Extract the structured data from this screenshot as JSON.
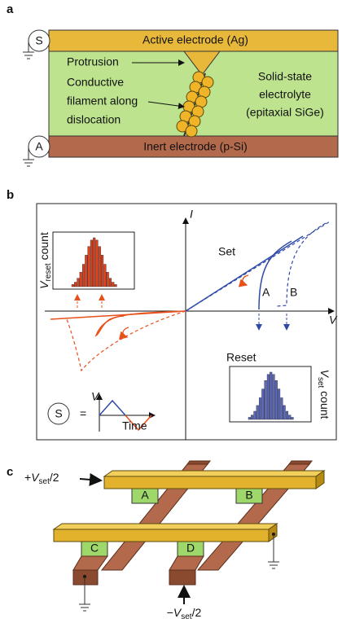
{
  "panels": {
    "a": {
      "label": "a",
      "source": "S",
      "top_electrode": "Active electrode (Ag)",
      "protrusion": "Protrusion",
      "filament": [
        "Conductive",
        "filament along",
        "dislocation"
      ],
      "electrolyte": [
        "Solid-state",
        "electrolyte",
        "(epitaxial SiGe)"
      ],
      "ground_terminal": "A",
      "bottom_electrode": "Inert electrode (p-Si)"
    },
    "b": {
      "label": "b",
      "y_axis": "I",
      "x_axis": "V",
      "set": "Set",
      "reset": "Reset",
      "state_a": "A",
      "state_b": "B",
      "reset_hist": {
        "main": "V",
        "sub": "reset",
        "rest": " count"
      },
      "set_hist": {
        "main": "V",
        "sub": "set",
        "rest": " count"
      },
      "source": "S",
      "equals": "=",
      "wave_y": "V",
      "wave_x": "Time"
    },
    "c": {
      "label": "c",
      "cells": [
        "A",
        "B",
        "C",
        "D"
      ],
      "top_bias": {
        "pre": "+",
        "main": "V",
        "sub": "set",
        "post": "/2"
      },
      "bottom_bias": {
        "pre": "−",
        "main": "V",
        "sub": "set",
        "post": "/2"
      }
    }
  }
}
